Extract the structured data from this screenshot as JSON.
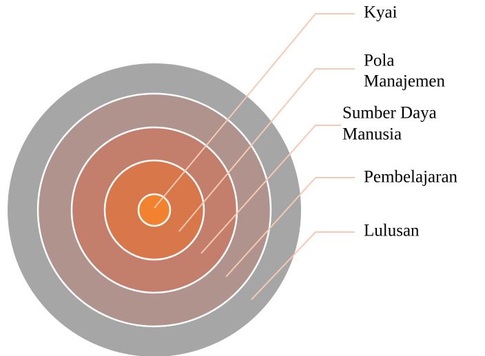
{
  "nodes": [
    {
      "lines": [
        "Kyai"
      ]
    },
    {
      "lines": [
        "Pola",
        "Manajemen"
      ]
    },
    {
      "lines": [
        "Sumber Daya",
        "Manusia"
      ]
    },
    {
      "lines": [
        "Pembelajaran"
      ]
    },
    {
      "lines": [
        "Lulusan"
      ]
    }
  ]
}
